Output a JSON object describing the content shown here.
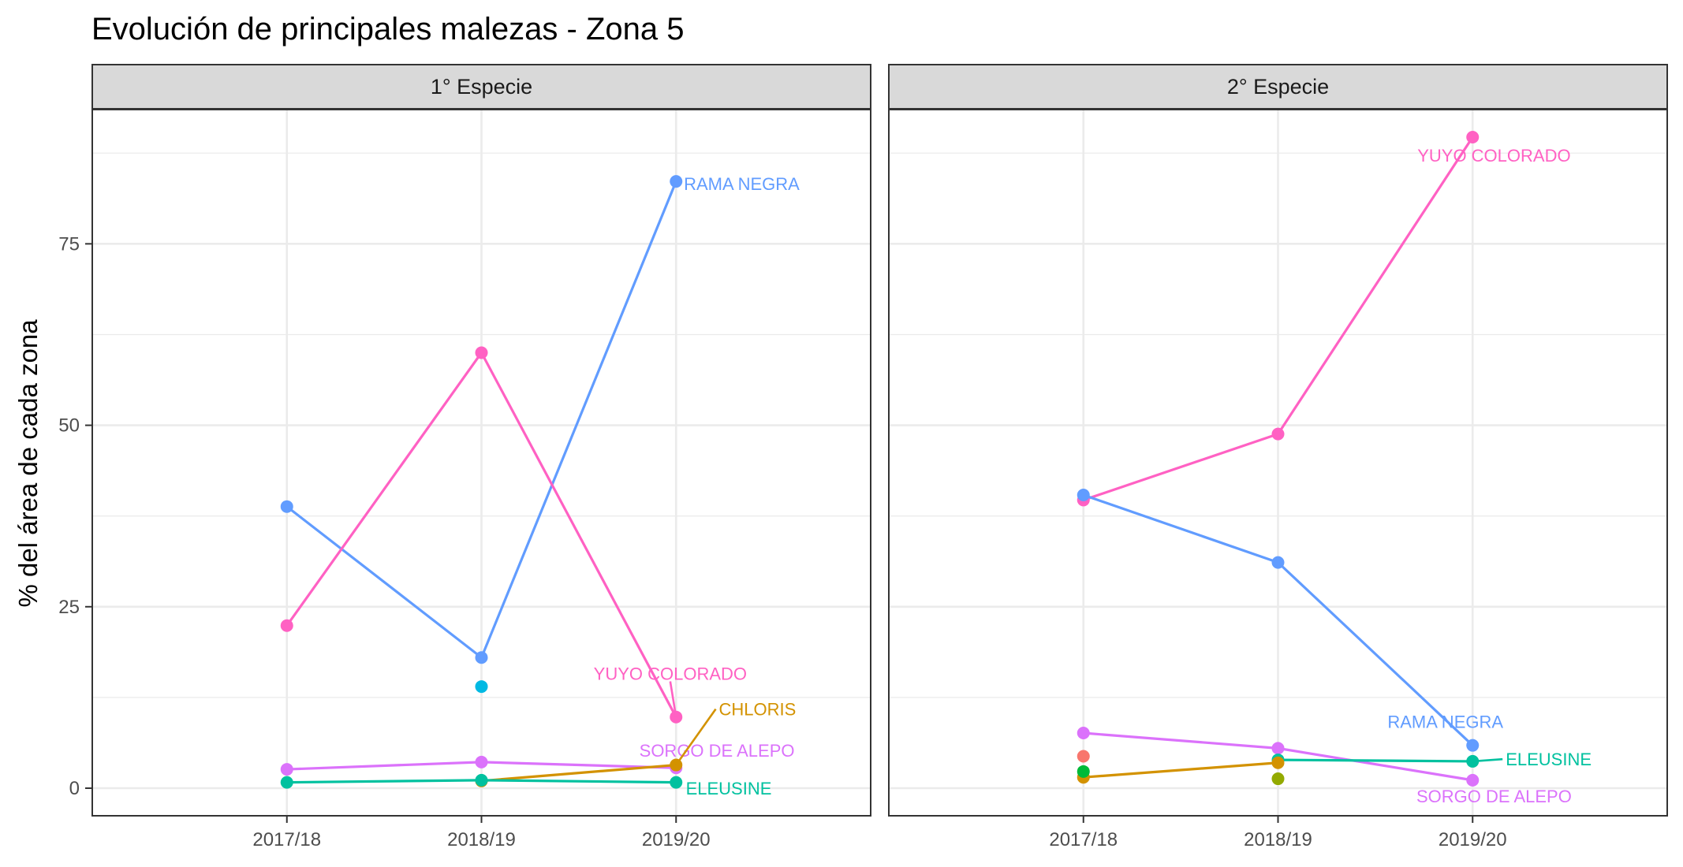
{
  "chart_data": {
    "type": "line",
    "title": "Evolución de principales malezas -  Zona 5",
    "xlabel": "",
    "ylabel": "% del área de cada zona",
    "categories": [
      "2017/18",
      "2018/19",
      "2019/20"
    ],
    "ylim": [
      -3.8,
      93.5
    ],
    "yticks": [
      0,
      25,
      50,
      75
    ],
    "grid": true,
    "legend": "none",
    "panels": [
      {
        "strip": "1° Especie",
        "series": [
          {
            "name": "RAMA NEGRA",
            "color": "#619CFF",
            "values": [
              38.8,
              18.0,
              83.6
            ],
            "label": "RAMA NEGRA",
            "label_anchor": "start",
            "label_at": [
              2.04,
              83.3
            ]
          },
          {
            "name": "YUYO COLORADO",
            "color": "#FF61C3",
            "values": [
              22.4,
              60.0,
              9.8
            ],
            "label": "YUYO COLORADO",
            "label_anchor": "middle",
            "label_at": [
              1.97,
              15.8
            ],
            "leader": true
          },
          {
            "name": "SORGO DE ALEPO",
            "color": "#DB72FB",
            "values": [
              2.6,
              3.6,
              2.8
            ],
            "label": "SORGO DE ALEPO",
            "label_anchor": "middle",
            "label_at": [
              2.21,
              5.2
            ]
          },
          {
            "name": "CHLORIS",
            "color": "#D39200",
            "values": [
              null,
              1.0,
              3.2
            ],
            "label": "CHLORIS",
            "label_anchor": "start",
            "label_at": [
              2.22,
              10.9
            ],
            "leader": true
          },
          {
            "name": "ELEUSINE",
            "color": "#00C19F",
            "values": [
              0.8,
              1.1,
              0.8
            ],
            "label": "ELEUSINE",
            "label_anchor": "start",
            "label_at": [
              2.05,
              0.0
            ]
          },
          {
            "name": "",
            "color": "#00B9E3",
            "values": [
              null,
              14.0,
              null
            ]
          }
        ]
      },
      {
        "strip": "2° Especie",
        "series": [
          {
            "name": "YUYO COLORADO",
            "color": "#FF61C3",
            "values": [
              39.7,
              48.8,
              89.7
            ],
            "label": "YUYO COLORADO",
            "label_anchor": "middle",
            "label_at": [
              2.11,
              87.2
            ]
          },
          {
            "name": "RAMA NEGRA",
            "color": "#619CFF",
            "values": [
              40.4,
              31.1,
              5.9
            ],
            "label": "RAMA NEGRA",
            "label_anchor": "middle",
            "label_at": [
              1.86,
              9.2
            ]
          },
          {
            "name": "SORGO DE ALEPO",
            "color": "#DB72FB",
            "values": [
              7.6,
              5.5,
              1.1
            ],
            "label": "SORGO DE ALEPO",
            "label_anchor": "middle",
            "label_at": [
              2.11,
              -1.1
            ]
          },
          {
            "name": "ELEUSINE",
            "color": "#00C19F",
            "values": [
              null,
              3.9,
              3.7
            ],
            "label": "ELEUSINE",
            "label_anchor": "start",
            "label_at": [
              2.17,
              4.0
            ],
            "leader": true
          },
          {
            "name": "",
            "color": "#D39200",
            "values": [
              1.5,
              3.5,
              null
            ]
          },
          {
            "name": "",
            "color": "#F8766D",
            "values": [
              4.4,
              null,
              null
            ]
          },
          {
            "name": "",
            "color": "#00BA38",
            "values": [
              2.3,
              null,
              null
            ]
          },
          {
            "name": "",
            "color": "#93AA00",
            "values": [
              null,
              1.3,
              null
            ]
          }
        ]
      }
    ]
  }
}
